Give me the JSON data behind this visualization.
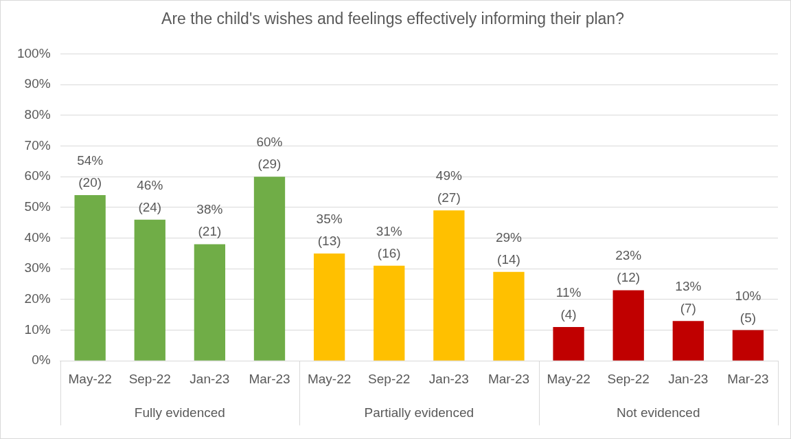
{
  "chart_data": {
    "type": "bar",
    "title": "Are the child's wishes and feelings effectively informing their plan?",
    "categories": [
      "May-22",
      "Sep-22",
      "Jan-23",
      "Mar-23",
      "May-22",
      "Sep-22",
      "Jan-23",
      "Mar-23",
      "May-22",
      "Sep-22",
      "Jan-23",
      "Mar-23"
    ],
    "values": [
      54,
      46,
      38,
      60,
      35,
      31,
      49,
      29,
      11,
      23,
      13,
      10
    ],
    "colors": [
      "#70ad47",
      "#70ad47",
      "#70ad47",
      "#70ad47",
      "#ffc000",
      "#ffc000",
      "#ffc000",
      "#ffc000",
      "#c00000",
      "#c00000",
      "#c00000",
      "#c00000"
    ],
    "value_labels": [
      "54% (20)",
      "46% (24)",
      "38% (21)",
      "60% (29)",
      "35% (13)",
      "31% (16)",
      "49% (27)",
      "29% (14)",
      "11% (4)",
      "23% (12)",
      "13% (7)",
      "10% (5)"
    ],
    "annotations": [
      "Fully evidenced",
      "Partially evidenced",
      "Not evidenced"
    ],
    "ylim": [
      0,
      100
    ],
    "yticks": [
      {
        "value": 0,
        "label": "0%"
      },
      {
        "value": 10,
        "label": "10%"
      },
      {
        "value": 20,
        "label": "20%"
      },
      {
        "value": 30,
        "label": "30%"
      },
      {
        "value": 40,
        "label": "40%"
      },
      {
        "value": 50,
        "label": "50%"
      },
      {
        "value": 60,
        "label": "60%"
      },
      {
        "value": 70,
        "label": "70%"
      },
      {
        "value": 80,
        "label": "80%"
      },
      {
        "value": 90,
        "label": "90%"
      },
      {
        "value": 100,
        "label": "100%"
      }
    ],
    "grid": "y",
    "legend": false
  }
}
